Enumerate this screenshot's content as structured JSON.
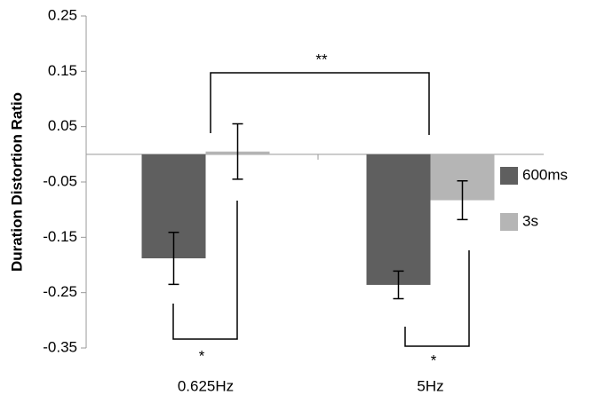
{
  "chart_data": {
    "type": "bar",
    "y_label": "Duration Distortion Ratio",
    "categories": [
      "0.625Hz",
      "5Hz"
    ],
    "series": [
      {
        "name": "600ms",
        "color": "#5f5f5f",
        "values": [
          -0.188,
          -0.236
        ],
        "errors": [
          0.047,
          0.025
        ]
      },
      {
        "name": "3s",
        "color": "#b5b5b5",
        "values": [
          0.005,
          -0.083
        ],
        "errors": [
          0.05,
          0.035
        ]
      }
    ],
    "ylim": [
      -0.35,
      0.25
    ],
    "yticks": [
      0.25,
      0.15,
      0.05,
      -0.05,
      -0.15,
      -0.25,
      -0.35
    ],
    "annotations": [
      "**",
      "*",
      "*"
    ]
  }
}
